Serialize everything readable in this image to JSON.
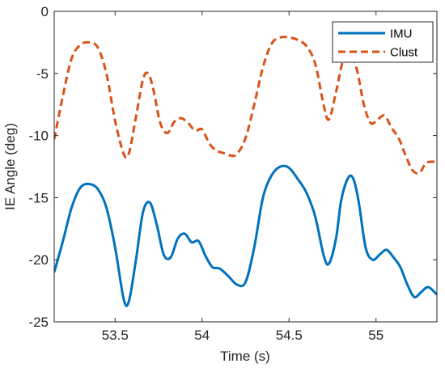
{
  "chart_data": {
    "type": "line",
    "title": "",
    "xlabel": "Time (s)",
    "ylabel": "IE Angle (deg)",
    "xlim": [
      53.15,
      55.35
    ],
    "ylim": [
      -25,
      0
    ],
    "x_ticks": [
      53.5,
      54,
      54.5,
      55
    ],
    "x_tick_labels": [
      "53.5",
      "54",
      "54.5",
      "55"
    ],
    "y_ticks": [
      -25,
      -20,
      -15,
      -10,
      -5,
      0
    ],
    "y_tick_labels": [
      "-25",
      "-20",
      "-15",
      "-10",
      "-5",
      "0"
    ],
    "grid": false,
    "legend_position": "top-right",
    "series": [
      {
        "name": "IMU",
        "color": "#0072BD",
        "style": "solid",
        "points": [
          [
            53.15,
            -21.0
          ],
          [
            53.2,
            -18.5
          ],
          [
            53.25,
            -15.8
          ],
          [
            53.3,
            -14.2
          ],
          [
            53.35,
            -13.9
          ],
          [
            53.4,
            -14.3
          ],
          [
            53.45,
            -15.8
          ],
          [
            53.5,
            -19.0
          ],
          [
            53.55,
            -23.2
          ],
          [
            53.58,
            -23.3
          ],
          [
            53.62,
            -20.0
          ],
          [
            53.66,
            -16.2
          ],
          [
            53.7,
            -15.4
          ],
          [
            53.74,
            -17.2
          ],
          [
            53.78,
            -19.6
          ],
          [
            53.82,
            -19.8
          ],
          [
            53.86,
            -18.3
          ],
          [
            53.9,
            -17.9
          ],
          [
            53.94,
            -18.6
          ],
          [
            53.98,
            -18.5
          ],
          [
            54.02,
            -19.7
          ],
          [
            54.06,
            -20.6
          ],
          [
            54.1,
            -20.7
          ],
          [
            54.15,
            -21.3
          ],
          [
            54.2,
            -22.0
          ],
          [
            54.25,
            -21.8
          ],
          [
            54.3,
            -19.0
          ],
          [
            54.35,
            -15.0
          ],
          [
            54.4,
            -13.2
          ],
          [
            54.45,
            -12.5
          ],
          [
            54.5,
            -12.6
          ],
          [
            54.55,
            -13.5
          ],
          [
            54.6,
            -14.6
          ],
          [
            54.65,
            -16.5
          ],
          [
            54.7,
            -19.7
          ],
          [
            54.73,
            -20.3
          ],
          [
            54.77,
            -18.3
          ],
          [
            54.8,
            -15.2
          ],
          [
            54.84,
            -13.4
          ],
          [
            54.87,
            -13.5
          ],
          [
            54.9,
            -15.3
          ],
          [
            54.94,
            -19.0
          ],
          [
            54.98,
            -20.0
          ],
          [
            55.02,
            -19.6
          ],
          [
            55.06,
            -19.2
          ],
          [
            55.1,
            -19.8
          ],
          [
            55.14,
            -20.6
          ],
          [
            55.18,
            -22.0
          ],
          [
            55.22,
            -23.0
          ],
          [
            55.26,
            -22.6
          ],
          [
            55.3,
            -22.2
          ],
          [
            55.35,
            -22.8
          ]
        ]
      },
      {
        "name": "Clust",
        "color": "#D95319",
        "style": "dashed",
        "points": [
          [
            53.15,
            -10.3
          ],
          [
            53.2,
            -6.8
          ],
          [
            53.25,
            -3.8
          ],
          [
            53.3,
            -2.7
          ],
          [
            53.35,
            -2.5
          ],
          [
            53.4,
            -2.9
          ],
          [
            53.45,
            -5.0
          ],
          [
            53.5,
            -8.8
          ],
          [
            53.55,
            -11.5
          ],
          [
            53.58,
            -11.4
          ],
          [
            53.62,
            -8.5
          ],
          [
            53.66,
            -5.5
          ],
          [
            53.69,
            -5.0
          ],
          [
            53.72,
            -6.3
          ],
          [
            53.76,
            -9.0
          ],
          [
            53.8,
            -9.8
          ],
          [
            53.84,
            -8.9
          ],
          [
            53.88,
            -8.6
          ],
          [
            53.92,
            -9.0
          ],
          [
            53.96,
            -9.6
          ],
          [
            54.0,
            -9.5
          ],
          [
            54.04,
            -10.6
          ],
          [
            54.08,
            -11.2
          ],
          [
            54.12,
            -11.4
          ],
          [
            54.16,
            -11.6
          ],
          [
            54.2,
            -11.5
          ],
          [
            54.25,
            -10.2
          ],
          [
            54.3,
            -7.5
          ],
          [
            54.35,
            -4.5
          ],
          [
            54.4,
            -2.6
          ],
          [
            54.45,
            -2.1
          ],
          [
            54.5,
            -2.1
          ],
          [
            54.55,
            -2.3
          ],
          [
            54.6,
            -2.8
          ],
          [
            54.65,
            -4.2
          ],
          [
            54.7,
            -7.6
          ],
          [
            54.73,
            -8.7
          ],
          [
            54.77,
            -6.5
          ],
          [
            54.81,
            -4.0
          ],
          [
            54.85,
            -3.5
          ],
          [
            54.89,
            -4.7
          ],
          [
            54.93,
            -7.5
          ],
          [
            54.97,
            -9.0
          ],
          [
            55.01,
            -8.7
          ],
          [
            55.05,
            -8.4
          ],
          [
            55.09,
            -9.4
          ],
          [
            55.13,
            -10.2
          ],
          [
            55.17,
            -11.6
          ],
          [
            55.21,
            -12.8
          ],
          [
            55.25,
            -13.0
          ],
          [
            55.29,
            -12.2
          ],
          [
            55.35,
            -12.1
          ]
        ]
      }
    ]
  }
}
